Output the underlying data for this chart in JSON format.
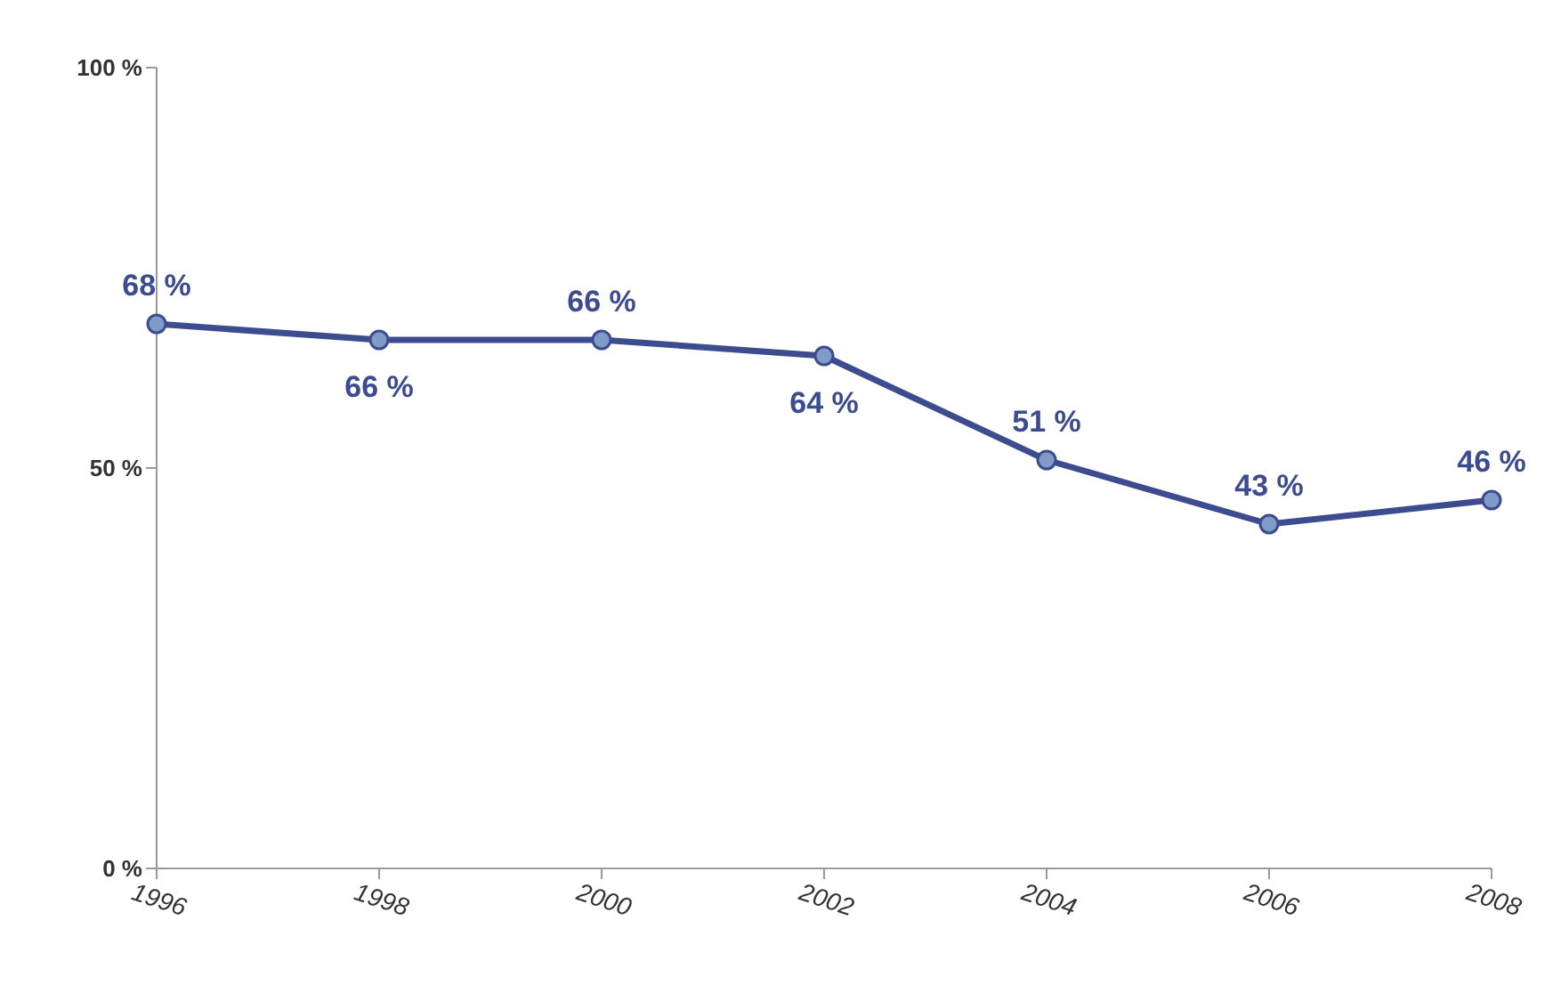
{
  "chart_data": {
    "type": "line",
    "categories": [
      "1996",
      "1998",
      "2000",
      "2002",
      "2004",
      "2006",
      "2008"
    ],
    "series": [
      {
        "color": "#3d4c8e",
        "values": [
          68,
          66,
          66,
          64,
          51,
          43,
          46
        ],
        "value_labels": [
          "68 %",
          "66 %",
          "66 %",
          "64 %",
          "51 %",
          "43 %",
          "46 %"
        ]
      }
    ],
    "ylim": [
      0,
      100
    ],
    "yticks": [
      {
        "value": 0,
        "label": "0 %"
      },
      {
        "value": 50,
        "label": "50 %"
      },
      {
        "value": 100,
        "label": "100 %"
      }
    ],
    "grid": false,
    "legend": false,
    "marker": "circle",
    "line_style": "solid"
  }
}
